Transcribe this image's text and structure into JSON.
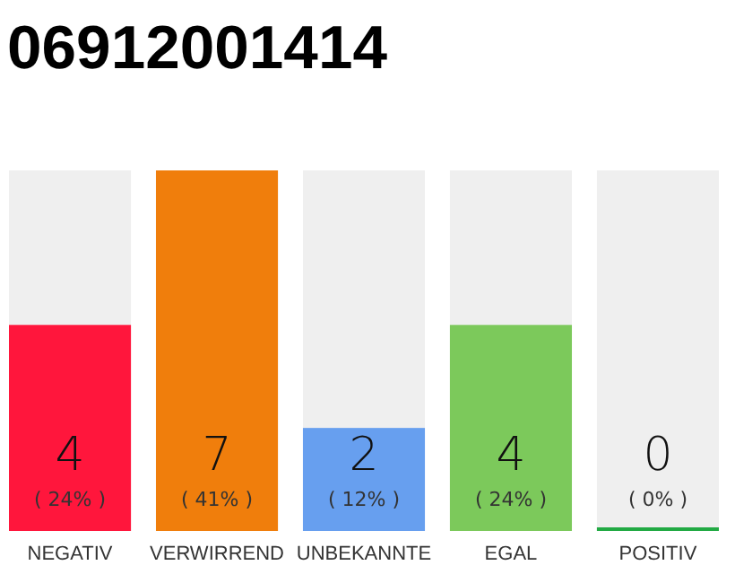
{
  "chart_data": {
    "type": "bar",
    "title": "06912001414",
    "categories": [
      "NEGATIV",
      "VERWIRREND",
      "UNBEKANNTE",
      "EGAL",
      "POSITIV"
    ],
    "values": [
      4,
      7,
      2,
      4,
      0
    ],
    "colors": [
      "#ff163c",
      "#f07e0c",
      "#679fef",
      "#7cc95b",
      "#22aa44"
    ],
    "value_labels": [
      "4\n( 24% )",
      "7\n( 41% )",
      "2\n( 12% )",
      "4\n( 24% )",
      "0\n( 0% )"
    ]
  }
}
